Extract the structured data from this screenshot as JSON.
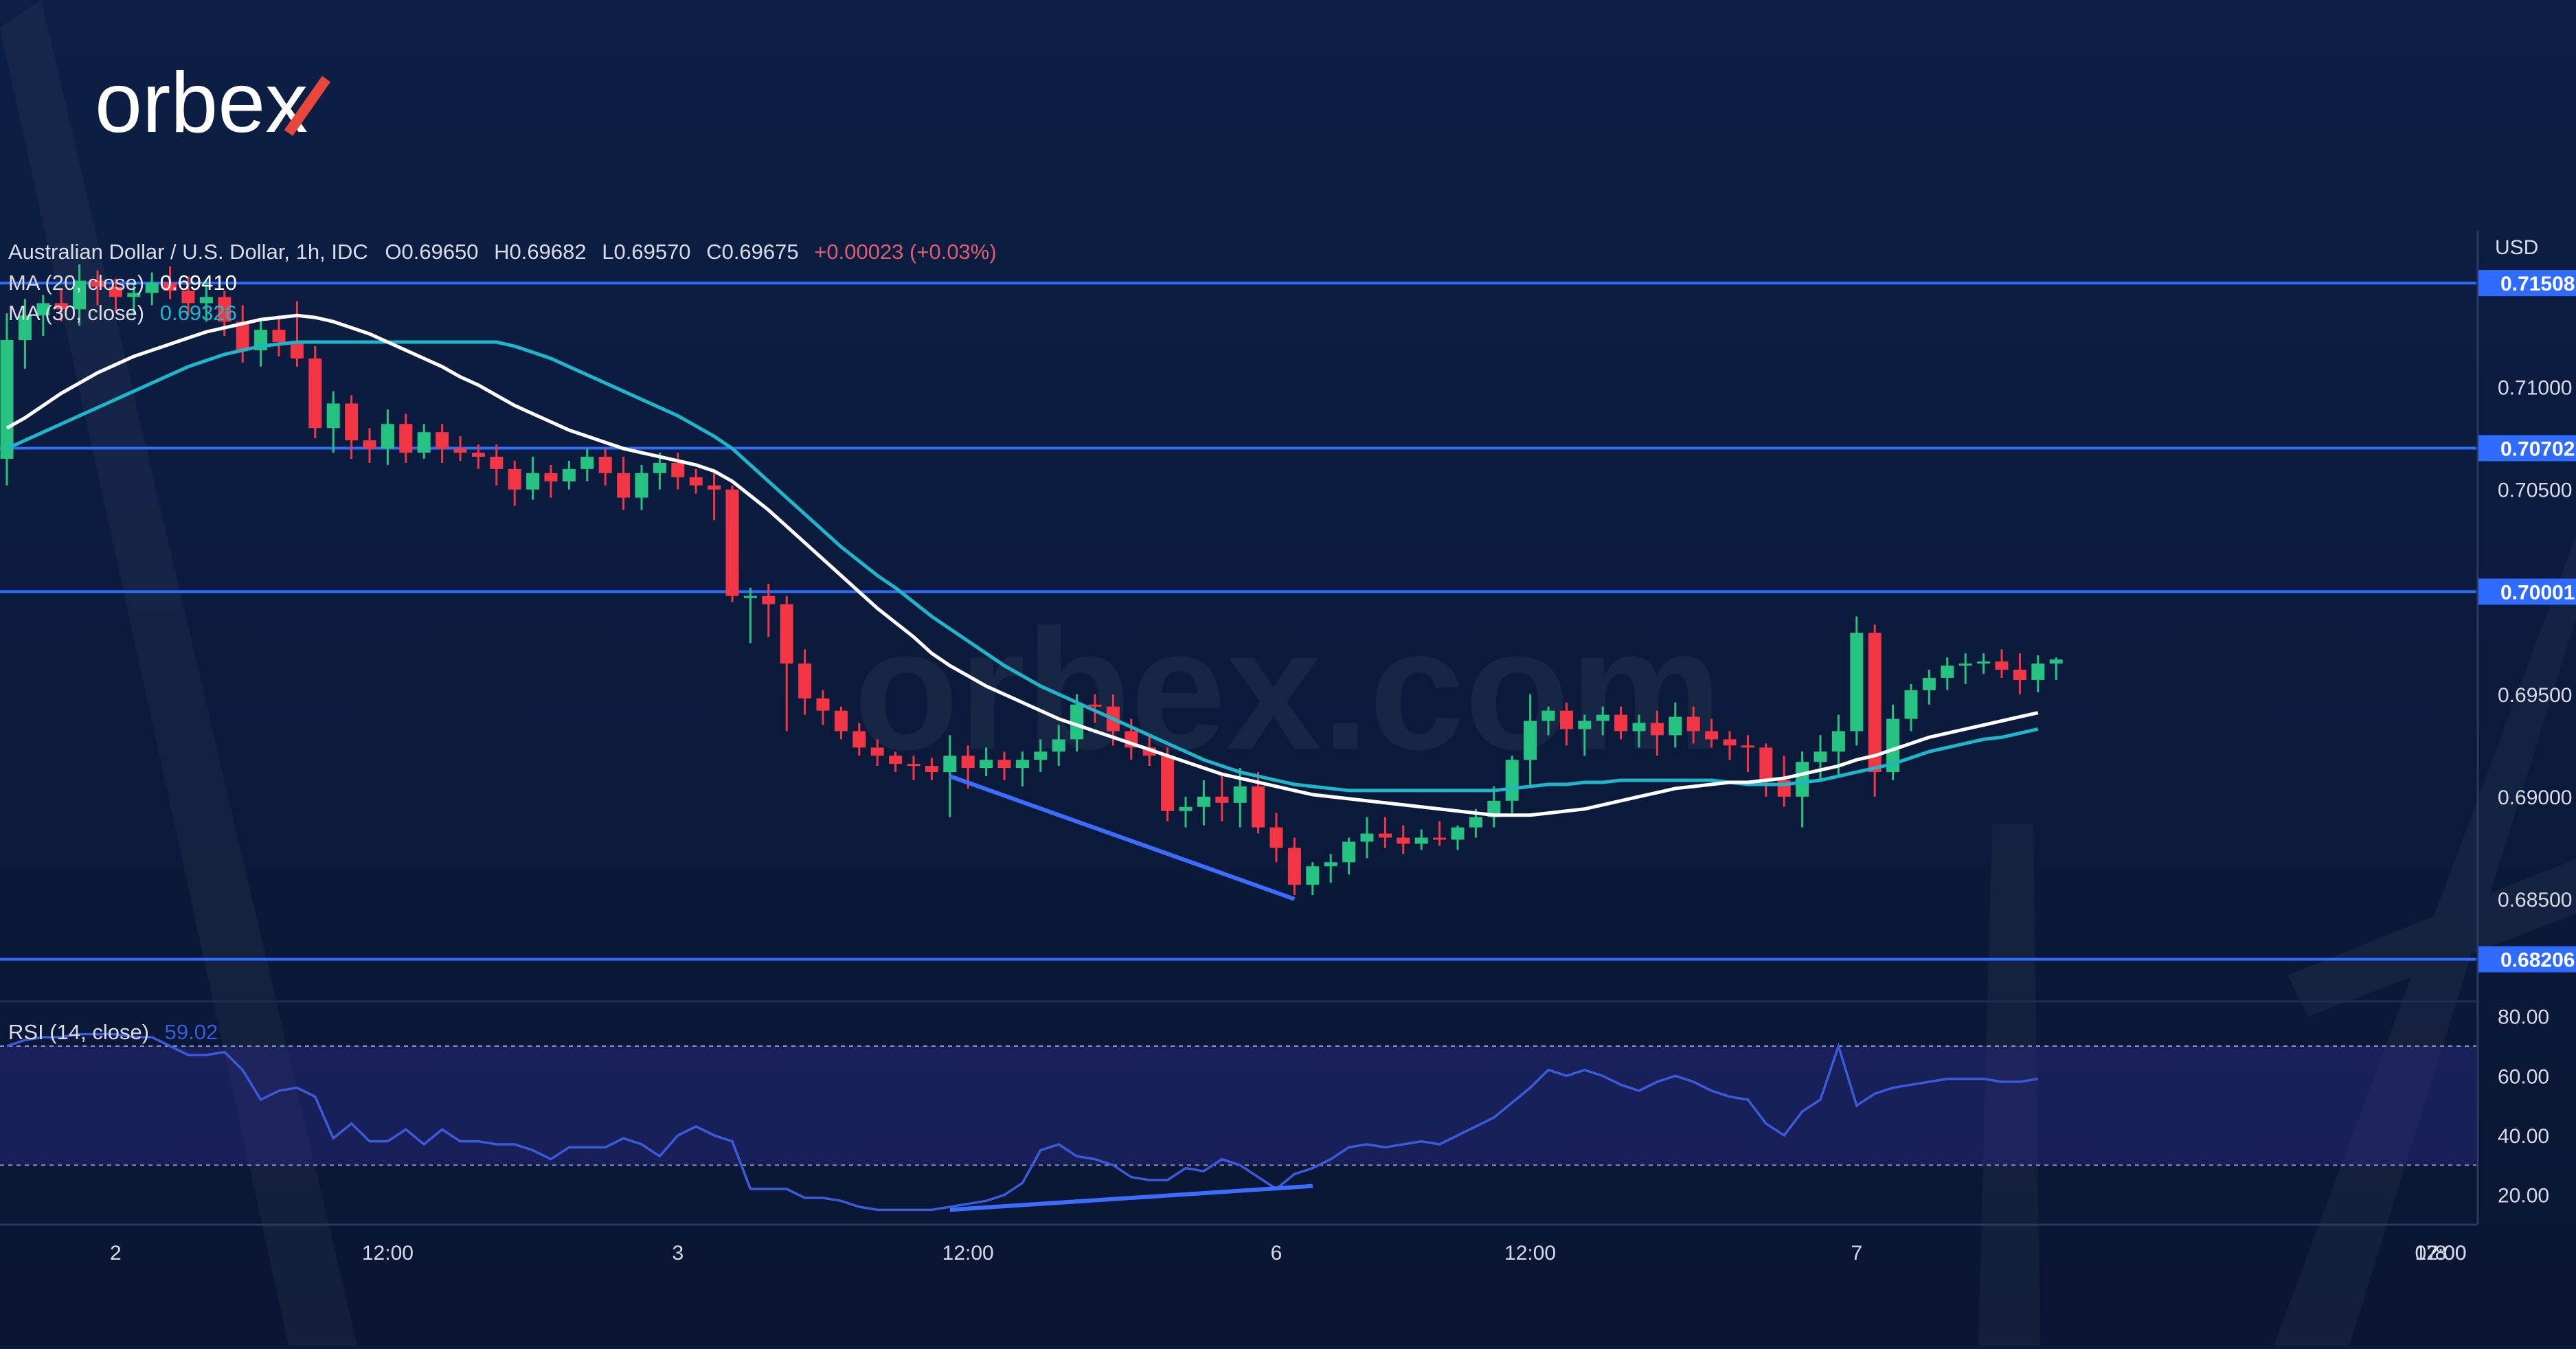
{
  "brand": {
    "logo": "orbex",
    "watermark": "orbex.com"
  },
  "header": {
    "instrument": "Australian Dollar / U.S. Dollar, 1h, IDC",
    "open": "O0.69650",
    "high": "H0.69682",
    "low": "L0.69570",
    "close": "C0.69675",
    "change": "+0.00023 (+0.03%)"
  },
  "indicators": {
    "ma20": {
      "label": "MA (20, close)",
      "value": "0.69410"
    },
    "ma30": {
      "label": "MA (30, close)",
      "value": "0.69326"
    },
    "rsi": {
      "label": "RSI (14, close)",
      "value": "59.02"
    }
  },
  "axis": {
    "currency": "USD",
    "price_ticks": [
      "0.71000",
      "0.70500",
      "0.69500",
      "0.69000",
      "0.68500"
    ],
    "rsi_ticks": [
      "80.00",
      "60.00",
      "40.00",
      "20.00"
    ],
    "time_ticks": [
      "2",
      "12:00",
      "3",
      "12:00",
      "6",
      "12:00",
      "7",
      "12:00",
      "8",
      "07:00"
    ]
  },
  "levels": [
    "0.71508",
    "0.70702",
    "0.70001",
    "0.68206"
  ],
  "colors": {
    "background": "#0b1a3a",
    "up": "#26c281",
    "down": "#f23645",
    "ma20": "#ffffff",
    "ma30": "#1fb6c9",
    "level": "#2f6bff",
    "rsi": "#3b5bdb",
    "trendline": "#3d6dff"
  },
  "chart_data": {
    "type": "candlestick",
    "timeframe": "1h",
    "price_range": [
      0.68,
      0.7175
    ],
    "rsi_range": [
      10,
      85
    ],
    "rsi_band": [
      30,
      70
    ],
    "candles": [
      [
        0.7065,
        0.7136,
        0.7052,
        0.7123
      ],
      [
        0.7123,
        0.7143,
        0.7109,
        0.7135
      ],
      [
        0.7135,
        0.7145,
        0.7125,
        0.7141
      ],
      [
        0.7141,
        0.7148,
        0.7132,
        0.7138
      ],
      [
        0.7138,
        0.716,
        0.713,
        0.7152
      ],
      [
        0.7152,
        0.7157,
        0.714,
        0.7149
      ],
      [
        0.7149,
        0.7153,
        0.7137,
        0.7144
      ],
      [
        0.7144,
        0.7151,
        0.7135,
        0.7146
      ],
      [
        0.7146,
        0.7156,
        0.714,
        0.7151
      ],
      [
        0.7151,
        0.7159,
        0.7143,
        0.7147
      ],
      [
        0.7147,
        0.7154,
        0.7135,
        0.7141
      ],
      [
        0.7141,
        0.7152,
        0.7132,
        0.7144
      ],
      [
        0.7144,
        0.7147,
        0.7125,
        0.7132
      ],
      [
        0.7132,
        0.714,
        0.7112,
        0.7118
      ],
      [
        0.7118,
        0.7133,
        0.711,
        0.7128
      ],
      [
        0.7128,
        0.7135,
        0.7115,
        0.7122
      ],
      [
        0.7122,
        0.7142,
        0.711,
        0.7114
      ],
      [
        0.7114,
        0.712,
        0.7075,
        0.708
      ],
      [
        0.708,
        0.7098,
        0.7068,
        0.7092
      ],
      [
        0.7092,
        0.7096,
        0.7065,
        0.7074
      ],
      [
        0.7074,
        0.708,
        0.7063,
        0.707
      ],
      [
        0.707,
        0.7089,
        0.7062,
        0.7082
      ],
      [
        0.7082,
        0.7087,
        0.7063,
        0.7068
      ],
      [
        0.7068,
        0.7082,
        0.7065,
        0.7078
      ],
      [
        0.7078,
        0.7082,
        0.7063,
        0.707
      ],
      [
        0.707,
        0.7076,
        0.7064,
        0.7068
      ],
      [
        0.7068,
        0.7072,
        0.706,
        0.7066
      ],
      [
        0.7066,
        0.7072,
        0.7052,
        0.706
      ],
      [
        0.706,
        0.7064,
        0.7042,
        0.705
      ],
      [
        0.705,
        0.7066,
        0.7045,
        0.7058
      ],
      [
        0.7058,
        0.7062,
        0.7046,
        0.7054
      ],
      [
        0.7054,
        0.7064,
        0.705,
        0.706
      ],
      [
        0.706,
        0.707,
        0.7054,
        0.7066
      ],
      [
        0.7066,
        0.707,
        0.7052,
        0.7058
      ],
      [
        0.7058,
        0.7066,
        0.704,
        0.7046
      ],
      [
        0.7046,
        0.7062,
        0.704,
        0.7058
      ],
      [
        0.7058,
        0.7068,
        0.705,
        0.7063
      ],
      [
        0.7063,
        0.7068,
        0.705,
        0.7056
      ],
      [
        0.7056,
        0.706,
        0.7048,
        0.7052
      ],
      [
        0.7052,
        0.7058,
        0.7035,
        0.705
      ],
      [
        0.705,
        0.7052,
        0.6995,
        0.6998
      ],
      [
        0.6998,
        0.7002,
        0.6975,
        0.6998
      ],
      [
        0.6998,
        0.7004,
        0.6978,
        0.6994
      ],
      [
        0.6994,
        0.6998,
        0.6932,
        0.6965
      ],
      [
        0.6965,
        0.6972,
        0.694,
        0.6948
      ],
      [
        0.6948,
        0.6952,
        0.6935,
        0.6942
      ],
      [
        0.6942,
        0.6944,
        0.6928,
        0.6932
      ],
      [
        0.6932,
        0.6936,
        0.692,
        0.6924
      ],
      [
        0.6924,
        0.6928,
        0.6915,
        0.692
      ],
      [
        0.692,
        0.6922,
        0.6912,
        0.6916
      ],
      [
        0.6916,
        0.692,
        0.6908,
        0.6915
      ],
      [
        0.6915,
        0.6919,
        0.6908,
        0.6912
      ],
      [
        0.6912,
        0.693,
        0.689,
        0.692
      ],
      [
        0.692,
        0.6925,
        0.6904,
        0.6914
      ],
      [
        0.6914,
        0.6924,
        0.691,
        0.6918
      ],
      [
        0.6918,
        0.6922,
        0.6908,
        0.6914
      ],
      [
        0.6914,
        0.6922,
        0.6905,
        0.6918
      ],
      [
        0.6918,
        0.6928,
        0.6912,
        0.6922
      ],
      [
        0.6922,
        0.6935,
        0.6915,
        0.6928
      ],
      [
        0.6928,
        0.695,
        0.6922,
        0.6945
      ],
      [
        0.6945,
        0.695,
        0.6936,
        0.6944
      ],
      [
        0.6944,
        0.695,
        0.6925,
        0.6932
      ],
      [
        0.6932,
        0.6938,
        0.6918,
        0.6924
      ],
      [
        0.6924,
        0.693,
        0.6915,
        0.692
      ],
      [
        0.692,
        0.6924,
        0.6888,
        0.6893
      ],
      [
        0.6893,
        0.69,
        0.6885,
        0.6895
      ],
      [
        0.6895,
        0.6908,
        0.6886,
        0.69
      ],
      [
        0.69,
        0.691,
        0.6888,
        0.6897
      ],
      [
        0.6897,
        0.6914,
        0.6885,
        0.6905
      ],
      [
        0.6905,
        0.6912,
        0.6882,
        0.6885
      ],
      [
        0.6885,
        0.6892,
        0.6868,
        0.6875
      ],
      [
        0.6875,
        0.688,
        0.6852,
        0.6857
      ],
      [
        0.6857,
        0.6868,
        0.6852,
        0.6866
      ],
      [
        0.6866,
        0.6872,
        0.6858,
        0.6868
      ],
      [
        0.6868,
        0.688,
        0.6862,
        0.6878
      ],
      [
        0.6878,
        0.689,
        0.687,
        0.6882
      ],
      [
        0.6882,
        0.689,
        0.6875,
        0.688
      ],
      [
        0.688,
        0.6886,
        0.6872,
        0.6877
      ],
      [
        0.6877,
        0.6884,
        0.6874,
        0.688
      ],
      [
        0.688,
        0.6888,
        0.6876,
        0.6879
      ],
      [
        0.6879,
        0.6886,
        0.6874,
        0.6885
      ],
      [
        0.6885,
        0.6894,
        0.688,
        0.689
      ],
      [
        0.689,
        0.6905,
        0.6885,
        0.6898
      ],
      [
        0.6898,
        0.692,
        0.6892,
        0.6918
      ],
      [
        0.6918,
        0.695,
        0.6905,
        0.6937
      ],
      [
        0.6937,
        0.6944,
        0.693,
        0.6942
      ],
      [
        0.6942,
        0.6946,
        0.6925,
        0.6933
      ],
      [
        0.6933,
        0.694,
        0.692,
        0.6937
      ],
      [
        0.6937,
        0.6944,
        0.693,
        0.694
      ],
      [
        0.694,
        0.6944,
        0.6928,
        0.6932
      ],
      [
        0.6932,
        0.694,
        0.6924,
        0.6936
      ],
      [
        0.6936,
        0.6942,
        0.692,
        0.693
      ],
      [
        0.693,
        0.6946,
        0.6924,
        0.6939
      ],
      [
        0.6939,
        0.6944,
        0.6926,
        0.6932
      ],
      [
        0.6932,
        0.6938,
        0.6924,
        0.6928
      ],
      [
        0.6928,
        0.6932,
        0.6918,
        0.6925
      ],
      [
        0.6925,
        0.693,
        0.6912,
        0.6924
      ],
      [
        0.6924,
        0.6926,
        0.69,
        0.6908
      ],
      [
        0.6908,
        0.692,
        0.6895,
        0.69
      ],
      [
        0.69,
        0.6922,
        0.6885,
        0.6917
      ],
      [
        0.6917,
        0.693,
        0.6908,
        0.6922
      ],
      [
        0.6922,
        0.694,
        0.691,
        0.6932
      ],
      [
        0.6932,
        0.6988,
        0.6925,
        0.698
      ],
      [
        0.698,
        0.6984,
        0.69,
        0.6912
      ],
      [
        0.6912,
        0.6945,
        0.6908,
        0.6938
      ],
      [
        0.6938,
        0.6955,
        0.6932,
        0.6952
      ],
      [
        0.6952,
        0.6962,
        0.6945,
        0.6958
      ],
      [
        0.6958,
        0.6968,
        0.6952,
        0.6964
      ],
      [
        0.6964,
        0.697,
        0.6955,
        0.6965
      ],
      [
        0.6965,
        0.697,
        0.696,
        0.6966
      ],
      [
        0.6966,
        0.6972,
        0.6958,
        0.6962
      ],
      [
        0.6962,
        0.697,
        0.695,
        0.6957
      ],
      [
        0.6957,
        0.6969,
        0.6951,
        0.6965
      ],
      [
        0.6965,
        0.6968,
        0.6957,
        0.6967
      ]
    ],
    "ma20": [
      0.708,
      0.7085,
      0.7091,
      0.7097,
      0.7102,
      0.7107,
      0.7111,
      0.7115,
      0.7118,
      0.7121,
      0.7124,
      0.7127,
      0.7129,
      0.7131,
      0.7133,
      0.7134,
      0.7135,
      0.7134,
      0.7132,
      0.7129,
      0.7126,
      0.7122,
      0.7118,
      0.7114,
      0.711,
      0.7105,
      0.7101,
      0.7096,
      0.7091,
      0.7087,
      0.7083,
      0.7079,
      0.7076,
      0.7073,
      0.707,
      0.7068,
      0.7066,
      0.7064,
      0.7062,
      0.7059,
      0.7054,
      0.7047,
      0.704,
      0.7032,
      0.7024,
      0.7016,
      0.7008,
      0.7,
      0.6992,
      0.6985,
      0.6978,
      0.697,
      0.6964,
      0.6959,
      0.6954,
      0.695,
      0.6946,
      0.6942,
      0.6938,
      0.6935,
      0.6932,
      0.6929,
      0.6926,
      0.6923,
      0.692,
      0.6917,
      0.6914,
      0.6911,
      0.6909,
      0.6907,
      0.6905,
      0.6903,
      0.6901,
      0.69,
      0.6899,
      0.6898,
      0.6897,
      0.6896,
      0.6895,
      0.6894,
      0.6893,
      0.6892,
      0.6891,
      0.6891,
      0.6891,
      0.6892,
      0.6893,
      0.6894,
      0.6896,
      0.6898,
      0.69,
      0.6902,
      0.6904,
      0.6905,
      0.6906,
      0.6907,
      0.6907,
      0.6908,
      0.6909,
      0.6911,
      0.6913,
      0.6915,
      0.6918,
      0.692,
      0.6923,
      0.6926,
      0.6929,
      0.6931,
      0.6933,
      0.6935,
      0.6937,
      0.6939,
      0.6941
    ],
    "ma30": [
      0.707,
      0.7074,
      0.7078,
      0.7082,
      0.7086,
      0.709,
      0.7094,
      0.7098,
      0.7102,
      0.7106,
      0.711,
      0.7113,
      0.7116,
      0.7118,
      0.712,
      0.7121,
      0.7122,
      0.7122,
      0.7122,
      0.7122,
      0.7122,
      0.7122,
      0.7122,
      0.7122,
      0.7122,
      0.7122,
      0.7122,
      0.7122,
      0.712,
      0.7117,
      0.7114,
      0.711,
      0.7106,
      0.7102,
      0.7098,
      0.7094,
      0.709,
      0.7086,
      0.7081,
      0.7076,
      0.707,
      0.7062,
      0.7054,
      0.7046,
      0.7038,
      0.703,
      0.7022,
      0.7015,
      0.7008,
      0.7002,
      0.6995,
      0.6988,
      0.6982,
      0.6976,
      0.697,
      0.6964,
      0.6959,
      0.6954,
      0.695,
      0.6946,
      0.6942,
      0.6938,
      0.6934,
      0.693,
      0.6926,
      0.6922,
      0.6918,
      0.6915,
      0.6912,
      0.691,
      0.6908,
      0.6906,
      0.6905,
      0.6904,
      0.6903,
      0.6903,
      0.6903,
      0.6903,
      0.6903,
      0.6903,
      0.6903,
      0.6903,
      0.6903,
      0.6904,
      0.6905,
      0.6906,
      0.6906,
      0.6907,
      0.6907,
      0.6908,
      0.6908,
      0.6908,
      0.6908,
      0.6908,
      0.6908,
      0.6907,
      0.6906,
      0.6906,
      0.6906,
      0.6907,
      0.6908,
      0.691,
      0.6912,
      0.6914,
      0.6916,
      0.6919,
      0.6922,
      0.6924,
      0.6926,
      0.6928,
      0.6929,
      0.6931,
      0.6933
    ],
    "rsi": [
      70,
      72,
      73,
      73,
      74,
      74,
      74,
      73,
      73,
      70,
      67,
      67,
      68,
      62,
      52,
      55,
      56,
      53,
      39,
      44,
      38,
      38,
      42,
      37,
      42,
      38,
      38,
      37,
      37,
      35,
      32,
      36,
      36,
      36,
      39,
      37,
      33,
      40,
      43,
      40,
      38,
      22,
      22,
      22,
      19,
      19,
      18,
      16,
      15,
      15,
      15,
      15,
      16,
      17,
      18,
      20,
      24,
      35,
      37,
      33,
      32,
      30,
      26,
      25,
      25,
      29,
      28,
      32,
      30,
      26,
      22,
      27,
      29,
      32,
      36,
      37,
      36,
      37,
      38,
      37,
      40,
      43,
      46,
      51,
      56,
      62,
      60,
      62,
      60,
      57,
      55,
      58,
      60,
      58,
      55,
      53,
      52,
      44,
      40,
      48,
      52,
      70,
      50,
      54,
      56,
      57,
      58,
      59,
      59,
      59,
      58,
      58,
      59
    ],
    "trendlines": {
      "price": [
        [
          52,
          0.691
        ],
        [
          71,
          0.685
        ]
      ],
      "rsi": [
        [
          52,
          15
        ],
        [
          72,
          23
        ]
      ]
    }
  }
}
